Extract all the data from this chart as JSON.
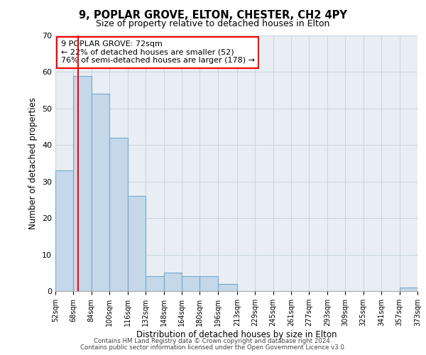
{
  "title": "9, POPLAR GROVE, ELTON, CHESTER, CH2 4PY",
  "subtitle": "Size of property relative to detached houses in Elton",
  "xlabel": "Distribution of detached houses by size in Elton",
  "ylabel": "Number of detached properties",
  "bin_edges": [
    52,
    68,
    84,
    100,
    116,
    132,
    148,
    164,
    180,
    196,
    213,
    229,
    245,
    261,
    277,
    293,
    309,
    325,
    341,
    357,
    373
  ],
  "bar_heights": [
    33,
    59,
    54,
    42,
    26,
    4,
    5,
    4,
    4,
    2,
    0,
    0,
    0,
    0,
    0,
    0,
    0,
    0,
    0,
    1
  ],
  "bar_color": "#c5d8ea",
  "bar_edge_color": "#6fa8c8",
  "property_line_x": 72,
  "property_line_color": "red",
  "annotation_title": "9 POPLAR GROVE: 72sqm",
  "annotation_line1": "← 22% of detached houses are smaller (52)",
  "annotation_line2": "76% of semi-detached houses are larger (178) →",
  "annotation_box_edge": "red",
  "ylim": [
    0,
    70
  ],
  "yticks": [
    0,
    10,
    20,
    30,
    40,
    50,
    60,
    70
  ],
  "x_tick_labels": [
    "52sqm",
    "68sqm",
    "84sqm",
    "100sqm",
    "116sqm",
    "132sqm",
    "148sqm",
    "164sqm",
    "180sqm",
    "196sqm",
    "213sqm",
    "229sqm",
    "245sqm",
    "261sqm",
    "277sqm",
    "293sqm",
    "309sqm",
    "325sqm",
    "341sqm",
    "357sqm",
    "373sqm"
  ],
  "footer1": "Contains HM Land Registry data © Crown copyright and database right 2024.",
  "footer2": "Contains public sector information licensed under the Open Government Licence v3.0.",
  "axes_bg_color": "#e8eef4",
  "fig_bg_color": "#ffffff"
}
